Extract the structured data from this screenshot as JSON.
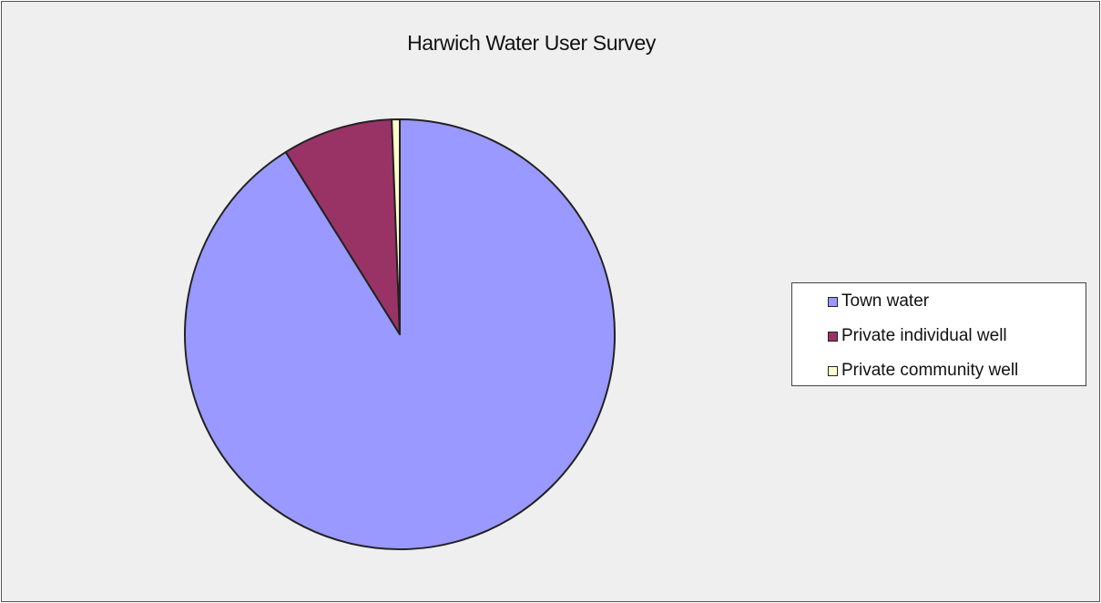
{
  "chart_data": {
    "type": "pie",
    "title": "Harwich Water User Survey",
    "slices": [
      {
        "label": "Town water",
        "value": 91.1,
        "color": "#9999ff"
      },
      {
        "label": "Private individual well",
        "value": 8.3,
        "color": "#993366"
      },
      {
        "label": "Private community well",
        "value": 0.6,
        "color": "#ffffcc"
      }
    ],
    "start_angle": "12 o'clock",
    "direction": "clockwise",
    "legend_position": "right"
  }
}
